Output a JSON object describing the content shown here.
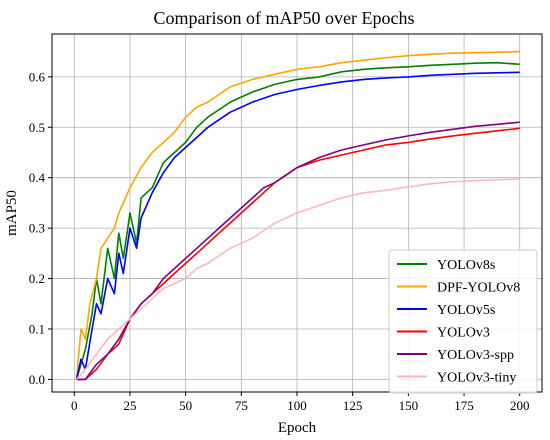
{
  "chart_data": {
    "type": "line",
    "title": "Comparison of mAP50 over Epochs",
    "xlabel": "Epoch",
    "ylabel": "mAP50",
    "xlim": [
      -10,
      210
    ],
    "ylim": [
      -0.025,
      0.685
    ],
    "xticks": [
      0,
      25,
      50,
      75,
      100,
      125,
      150,
      175,
      200
    ],
    "yticks": [
      0.0,
      0.1,
      0.2,
      0.3,
      0.4,
      0.5,
      0.6
    ],
    "ytick_labels": [
      "0.0",
      "0.1",
      "0.2",
      "0.3",
      "0.4",
      "0.5",
      "0.6"
    ],
    "grid": true,
    "legend_position": "lower-right",
    "series": [
      {
        "name": "YOLOv8s",
        "color": "#008000",
        "x": [
          1,
          3,
          5,
          8,
          10,
          12,
          15,
          18,
          20,
          22,
          25,
          28,
          30,
          35,
          40,
          45,
          50,
          55,
          60,
          70,
          80,
          90,
          100,
          110,
          120,
          130,
          140,
          150,
          160,
          170,
          180,
          190,
          200
        ],
        "y": [
          0.0,
          0.03,
          0.06,
          0.13,
          0.2,
          0.15,
          0.26,
          0.2,
          0.29,
          0.24,
          0.33,
          0.27,
          0.36,
          0.38,
          0.43,
          0.45,
          0.47,
          0.5,
          0.52,
          0.55,
          0.57,
          0.585,
          0.595,
          0.6,
          0.61,
          0.615,
          0.618,
          0.62,
          0.623,
          0.625,
          0.627,
          0.628,
          0.625
        ]
      },
      {
        "name": "DPF-YOLOv8",
        "color": "#ffa500",
        "x": [
          1,
          3,
          5,
          7,
          10,
          12,
          15,
          18,
          20,
          25,
          30,
          35,
          40,
          45,
          50,
          55,
          60,
          70,
          80,
          90,
          100,
          110,
          120,
          130,
          140,
          150,
          160,
          170,
          180,
          190,
          200
        ],
        "y": [
          0.0,
          0.1,
          0.08,
          0.15,
          0.2,
          0.26,
          0.28,
          0.3,
          0.33,
          0.38,
          0.42,
          0.45,
          0.47,
          0.49,
          0.52,
          0.54,
          0.55,
          0.58,
          0.595,
          0.605,
          0.615,
          0.62,
          0.628,
          0.633,
          0.638,
          0.642,
          0.645,
          0.647,
          0.648,
          0.649,
          0.65
        ]
      },
      {
        "name": "YOLOv5s",
        "color": "#0000ff",
        "x": [
          1,
          3,
          5,
          8,
          10,
          12,
          15,
          18,
          20,
          22,
          25,
          28,
          30,
          35,
          40,
          45,
          50,
          55,
          60,
          70,
          80,
          90,
          100,
          110,
          120,
          130,
          140,
          150,
          160,
          170,
          180,
          190,
          200
        ],
        "y": [
          0.0,
          0.04,
          0.02,
          0.1,
          0.15,
          0.13,
          0.2,
          0.17,
          0.25,
          0.21,
          0.3,
          0.26,
          0.32,
          0.37,
          0.41,
          0.44,
          0.46,
          0.48,
          0.5,
          0.53,
          0.55,
          0.565,
          0.575,
          0.583,
          0.59,
          0.595,
          0.598,
          0.6,
          0.603,
          0.605,
          0.607,
          0.608,
          0.609
        ]
      },
      {
        "name": "YOLOv3",
        "color": "#ff0000",
        "x": [
          1,
          5,
          10,
          15,
          20,
          25,
          30,
          35,
          40,
          45,
          50,
          55,
          60,
          65,
          70,
          75,
          80,
          85,
          90,
          95,
          100,
          110,
          120,
          130,
          140,
          150,
          160,
          170,
          180,
          190,
          200
        ],
        "y": [
          0.0,
          0.0,
          0.02,
          0.05,
          0.07,
          0.12,
          0.15,
          0.17,
          0.19,
          0.21,
          0.23,
          0.25,
          0.27,
          0.29,
          0.31,
          0.33,
          0.35,
          0.37,
          0.39,
          0.405,
          0.42,
          0.435,
          0.445,
          0.455,
          0.465,
          0.47,
          0.477,
          0.483,
          0.488,
          0.493,
          0.498
        ]
      },
      {
        "name": "YOLOv3-spp",
        "color": "#800080",
        "x": [
          1,
          5,
          10,
          15,
          20,
          25,
          30,
          35,
          40,
          45,
          50,
          55,
          60,
          65,
          70,
          75,
          80,
          85,
          90,
          95,
          100,
          110,
          120,
          130,
          140,
          150,
          160,
          170,
          180,
          190,
          200
        ],
        "y": [
          0.0,
          0.0,
          0.03,
          0.05,
          0.08,
          0.12,
          0.15,
          0.17,
          0.2,
          0.22,
          0.24,
          0.26,
          0.28,
          0.3,
          0.32,
          0.34,
          0.36,
          0.38,
          0.39,
          0.405,
          0.42,
          0.44,
          0.455,
          0.465,
          0.475,
          0.483,
          0.49,
          0.496,
          0.502,
          0.506,
          0.51
        ]
      },
      {
        "name": "YOLOv3-tiny",
        "color": "#ffb6c1",
        "x": [
          1,
          5,
          10,
          15,
          20,
          25,
          30,
          35,
          40,
          45,
          50,
          55,
          60,
          70,
          80,
          90,
          100,
          110,
          120,
          130,
          140,
          150,
          160,
          170,
          180,
          190,
          200
        ],
        "y": [
          0.0,
          0.02,
          0.05,
          0.08,
          0.1,
          0.12,
          0.14,
          0.16,
          0.18,
          0.19,
          0.2,
          0.22,
          0.23,
          0.26,
          0.28,
          0.31,
          0.33,
          0.345,
          0.36,
          0.37,
          0.375,
          0.382,
          0.388,
          0.392,
          0.394,
          0.396,
          0.397
        ]
      }
    ]
  }
}
